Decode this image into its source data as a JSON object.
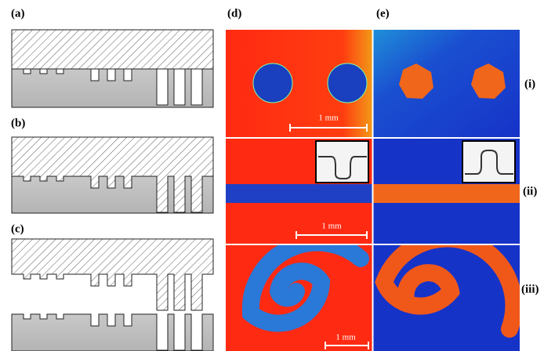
{
  "panels": {
    "a": "(a)",
    "b": "(b)",
    "c": "(c)",
    "d": "(d)",
    "e": "(e)"
  },
  "rows": [
    "(i)",
    "(ii)",
    "(iii)"
  ],
  "scale_bars": [
    "1 mm",
    "1 mm",
    "1 mm"
  ]
}
